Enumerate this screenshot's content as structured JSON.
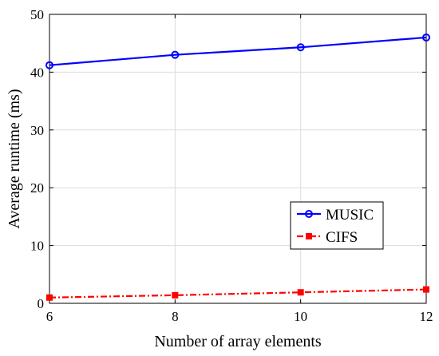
{
  "chart_data": {
    "type": "line",
    "xlabel": "Number of array elements",
    "ylabel": "Average runtime (ms)",
    "xlim": [
      6,
      12
    ],
    "ylim": [
      0,
      50
    ],
    "xticks": [
      "6",
      "8",
      "10",
      "12"
    ],
    "yticks": [
      "0",
      "10",
      "20",
      "30",
      "40",
      "50"
    ],
    "grid": true,
    "legend_position": "lower-right",
    "x": [
      6,
      8,
      10,
      12
    ],
    "series": [
      {
        "name": "MUSIC",
        "color": "#0000ff",
        "marker": "circle",
        "line_style": "solid",
        "values": [
          41.2,
          43.0,
          44.3,
          46.0
        ]
      },
      {
        "name": "CIFS",
        "color": "#ff0000",
        "marker": "square",
        "line_style": "dash-dot",
        "values": [
          1.0,
          1.4,
          1.9,
          2.4
        ]
      }
    ]
  }
}
